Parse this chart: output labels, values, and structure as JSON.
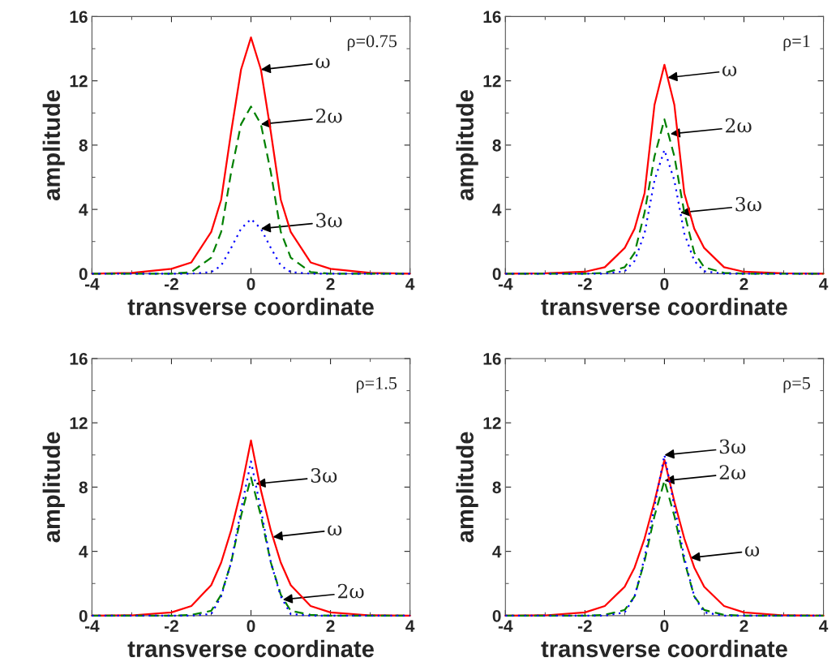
{
  "chart_data": [
    {
      "type": "line",
      "xlabel": "transverse coordinate",
      "ylabel": "amplitude",
      "xlim": [
        -4,
        4
      ],
      "ylim": [
        0,
        16
      ],
      "xticks": [
        -4,
        -2,
        0,
        2,
        4
      ],
      "yticks": [
        0,
        4,
        8,
        12,
        16
      ],
      "grid": false,
      "legend": false,
      "x": [
        -4,
        -3,
        -2,
        -1.5,
        -1,
        -0.75,
        -0.5,
        -0.25,
        0,
        0.25,
        0.5,
        0.75,
        1,
        1.5,
        2,
        3,
        4
      ],
      "series": [
        {
          "color": "#ff0000",
          "line_style": "solid",
          "values": [
            0,
            0.05,
            0.3,
            0.7,
            2.6,
            4.6,
            8.8,
            12.7,
            14.7,
            12.7,
            8.8,
            4.6,
            2.6,
            0.7,
            0.3,
            0.05,
            0
          ]
        },
        {
          "color": "#008000",
          "line_style": "dashed",
          "values": [
            0,
            0,
            0,
            0.1,
            1.0,
            2.6,
            6.3,
            9.3,
            10.4,
            9.3,
            6.3,
            2.6,
            1.0,
            0.1,
            0,
            0,
            0
          ]
        },
        {
          "color": "#0000ff",
          "line_style": "dotted",
          "values": [
            0,
            0,
            0,
            0,
            0.1,
            0.5,
            1.6,
            2.8,
            3.4,
            2.8,
            1.6,
            0.5,
            0.1,
            0,
            0,
            0,
            0
          ]
        }
      ],
      "annotations": [
        "ρ=0.75",
        {
          "text": "ω",
          "x": 0.25,
          "y": 12.7
        },
        {
          "text": "2ω",
          "x": 0.25,
          "y": 9.3
        },
        {
          "text": "3ω",
          "x": 0.25,
          "y": 2.8
        }
      ]
    },
    {
      "type": "line",
      "xlabel": "transverse coordinate",
      "ylabel": "amplitude",
      "xlim": [
        -4,
        4
      ],
      "ylim": [
        0,
        16
      ],
      "xticks": [
        -4,
        -2,
        0,
        2,
        4
      ],
      "yticks": [
        0,
        4,
        8,
        12,
        16
      ],
      "grid": false,
      "legend": false,
      "x": [
        -4,
        -3,
        -2,
        -1.5,
        -1,
        -0.75,
        -0.5,
        -0.25,
        0,
        0.25,
        0.5,
        0.75,
        1,
        1.5,
        2,
        3,
        4
      ],
      "series": [
        {
          "color": "#ff0000",
          "line_style": "solid",
          "values": [
            0,
            0.02,
            0.12,
            0.4,
            1.6,
            2.8,
            5.0,
            10.5,
            13.0,
            10.5,
            5.0,
            2.8,
            1.6,
            0.4,
            0.12,
            0.02,
            0
          ]
        },
        {
          "color": "#008000",
          "line_style": "dashed",
          "values": [
            0,
            0,
            0,
            0.05,
            0.4,
            1.3,
            3.8,
            7.3,
            9.6,
            7.3,
            3.8,
            1.3,
            0.4,
            0.05,
            0,
            0,
            0
          ]
        },
        {
          "color": "#0000ff",
          "line_style": "dotted",
          "values": [
            0,
            0,
            0,
            0,
            0.15,
            0.8,
            2.5,
            5.8,
            7.7,
            5.8,
            2.5,
            0.8,
            0.15,
            0,
            0,
            0,
            0
          ]
        }
      ],
      "annotations": [
        "ρ=1",
        {
          "text": "ω",
          "x": 0.08,
          "y": 12.2
        },
        {
          "text": "2ω",
          "x": 0.15,
          "y": 8.7
        },
        {
          "text": "3ω",
          "x": 0.4,
          "y": 3.8
        }
      ]
    },
    {
      "type": "line",
      "xlabel": "transverse coordinate",
      "ylabel": "amplitude",
      "xlim": [
        -4,
        4
      ],
      "ylim": [
        0,
        16
      ],
      "xticks": [
        -4,
        -2,
        0,
        2,
        4
      ],
      "yticks": [
        0,
        4,
        8,
        12,
        16
      ],
      "grid": false,
      "legend": false,
      "x": [
        -4,
        -3,
        -2,
        -1.5,
        -1,
        -0.75,
        -0.5,
        -0.25,
        0,
        0.25,
        0.5,
        0.75,
        1,
        1.5,
        2,
        3,
        4
      ],
      "series": [
        {
          "color": "#ff0000",
          "line_style": "solid",
          "values": [
            0,
            0.02,
            0.2,
            0.6,
            1.9,
            3.3,
            5.3,
            7.8,
            10.9,
            7.8,
            5.3,
            3.3,
            1.9,
            0.6,
            0.2,
            0.02,
            0
          ]
        },
        {
          "color": "#008000",
          "line_style": "dashed",
          "values": [
            0,
            0,
            0,
            0.05,
            0.3,
            1.3,
            3.3,
            6.2,
            8.6,
            6.2,
            3.3,
            1.3,
            0.3,
            0.05,
            0,
            0,
            0
          ]
        },
        {
          "color": "#0000ff",
          "line_style": "dotted",
          "values": [
            0,
            0,
            0,
            0,
            0.1,
            1.2,
            3.3,
            6.6,
            9.6,
            6.6,
            3.3,
            1.2,
            0.1,
            0,
            0,
            0,
            0
          ]
        }
      ],
      "annotations": [
        "ρ=1.5",
        {
          "text": "3ω",
          "x": 0.12,
          "y": 8.2
        },
        {
          "text": "ω",
          "x": 0.55,
          "y": 4.9
        },
        {
          "text": "2ω",
          "x": 0.8,
          "y": 1.0
        }
      ]
    },
    {
      "type": "line",
      "xlabel": "transverse coordinate",
      "ylabel": "amplitude",
      "xlim": [
        -4,
        4
      ],
      "ylim": [
        0,
        16
      ],
      "xticks": [
        -4,
        -2,
        0,
        2,
        4
      ],
      "yticks": [
        0,
        4,
        8,
        12,
        16
      ],
      "grid": false,
      "legend": false,
      "x": [
        -4,
        -3,
        -2,
        -1.5,
        -1,
        -0.75,
        -0.5,
        -0.25,
        0,
        0.25,
        0.5,
        0.75,
        1,
        1.5,
        2,
        3,
        4
      ],
      "series": [
        {
          "color": "#ff0000",
          "line_style": "solid",
          "values": [
            0,
            0.02,
            0.2,
            0.6,
            1.8,
            3.0,
            4.8,
            7.1,
            9.7,
            7.1,
            4.8,
            3.0,
            1.8,
            0.6,
            0.2,
            0.02,
            0
          ]
        },
        {
          "color": "#008000",
          "line_style": "dashed",
          "values": [
            0,
            0,
            0,
            0.05,
            0.35,
            1.2,
            3.4,
            6.2,
            8.4,
            6.2,
            3.4,
            1.2,
            0.35,
            0.05,
            0,
            0,
            0
          ]
        },
        {
          "color": "#0000ff",
          "line_style": "dotted",
          "values": [
            0,
            0,
            0,
            0,
            0.2,
            1.2,
            3.6,
            6.8,
            10.0,
            6.8,
            3.6,
            1.2,
            0.2,
            0,
            0,
            0,
            0
          ]
        }
      ],
      "annotations": [
        "ρ=5",
        {
          "text": "3ω",
          "x": 0,
          "y": 10.0
        },
        {
          "text": "2ω",
          "x": 0,
          "y": 8.4
        },
        {
          "text": "ω",
          "x": 0.65,
          "y": 3.6
        }
      ]
    }
  ]
}
